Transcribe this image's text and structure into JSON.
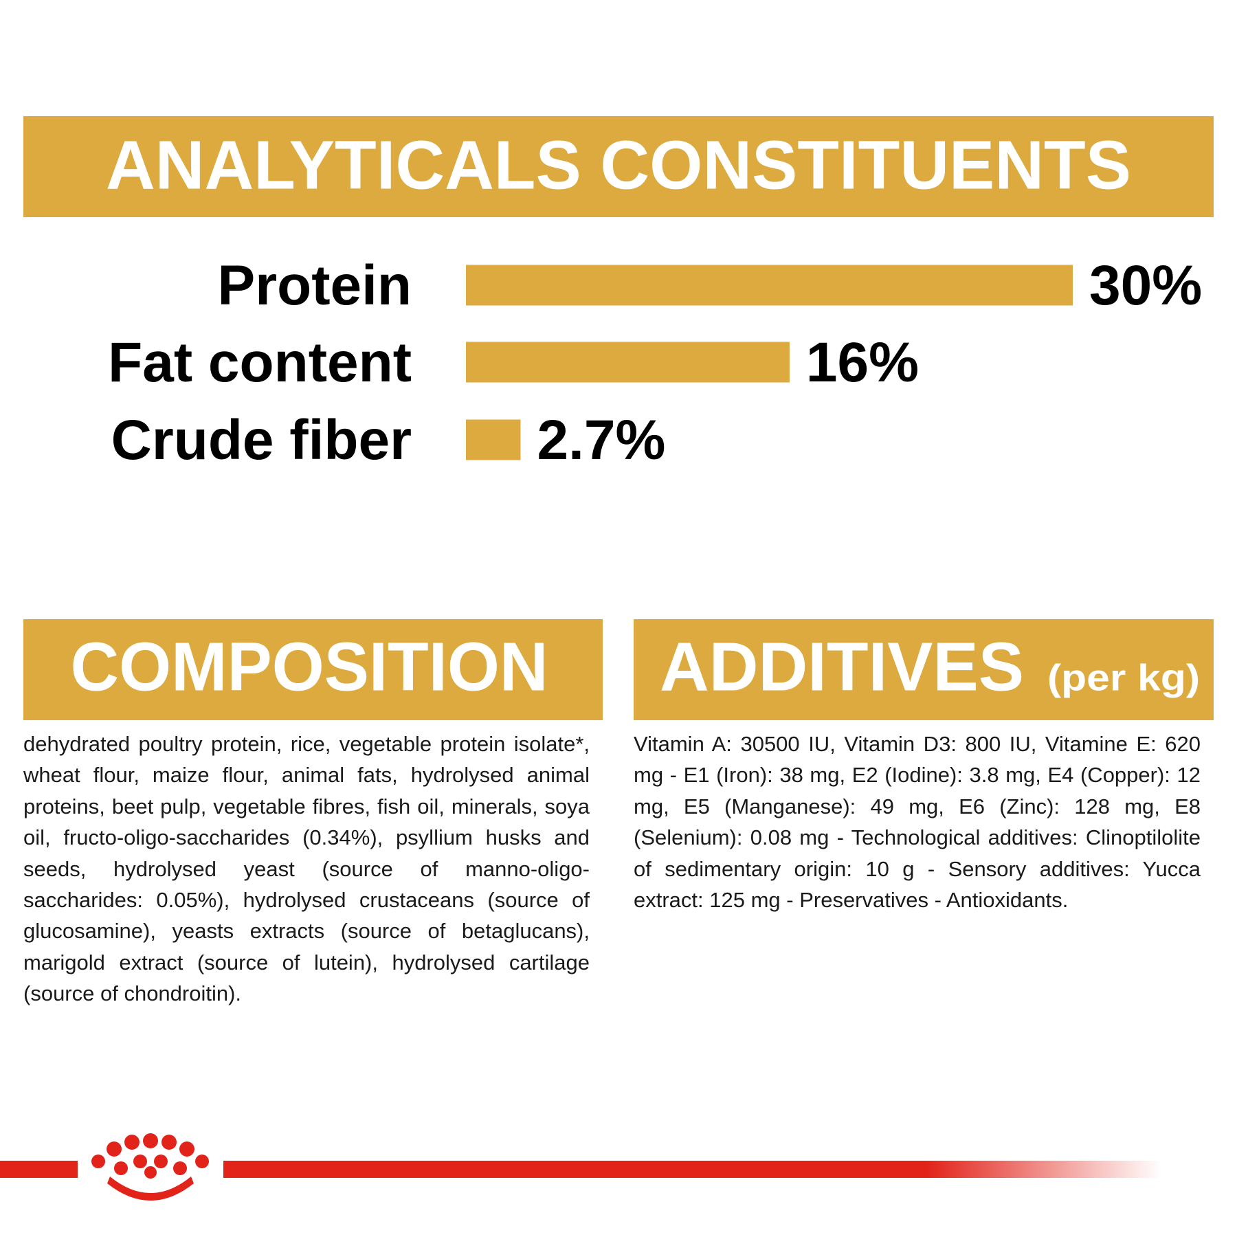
{
  "header": {
    "title": "ANALYTICALS CONSTITUENTS"
  },
  "chart_data": {
    "type": "bar",
    "orientation": "horizontal",
    "categories": [
      "Protein",
      "Fat content",
      "Crude fiber"
    ],
    "values": [
      30,
      16,
      2.7
    ],
    "value_labels": [
      "30%",
      "16%",
      "2.7%"
    ],
    "color": "#dcaa3e"
  },
  "composition": {
    "title": "COMPOSITION",
    "text": "dehydrated poultry protein, rice, vegetable protein isolate*, wheat flour, maize flour, animal fats, hydrolysed animal proteins, beet pulp, vegetable fibres, fish oil, minerals, soya oil, fructo-oligo-saccharides (0.34%), psyllium husks and seeds, hydrolysed yeast (source of manno-oligo-saccharides: 0.05%), hydrolysed crustaceans (source of glucosamine), yeasts extracts (source of betaglucans), marigold extract (source of lutein), hydrolysed cartilage (source of chondroitin)."
  },
  "additives": {
    "title": "ADDITIVES",
    "unit": "(per kg)",
    "text": "Vitamin A: 30500 IU, Vitamin D3: 800 IU, Vitamine E: 620 mg - E1 (Iron): 38 mg, E2 (Iodine): 3.8 mg, E4 (Copper): 12 mg, E5 (Manganese): 49 mg, E6 (Zinc): 128 mg, E8 (Selenium): 0.08 mg - Technological additives: Clinoptilolite of sedimentary origin: 10 g - Sensory additives: Yucca extract: 125 mg - Preservatives - Antioxidants."
  }
}
